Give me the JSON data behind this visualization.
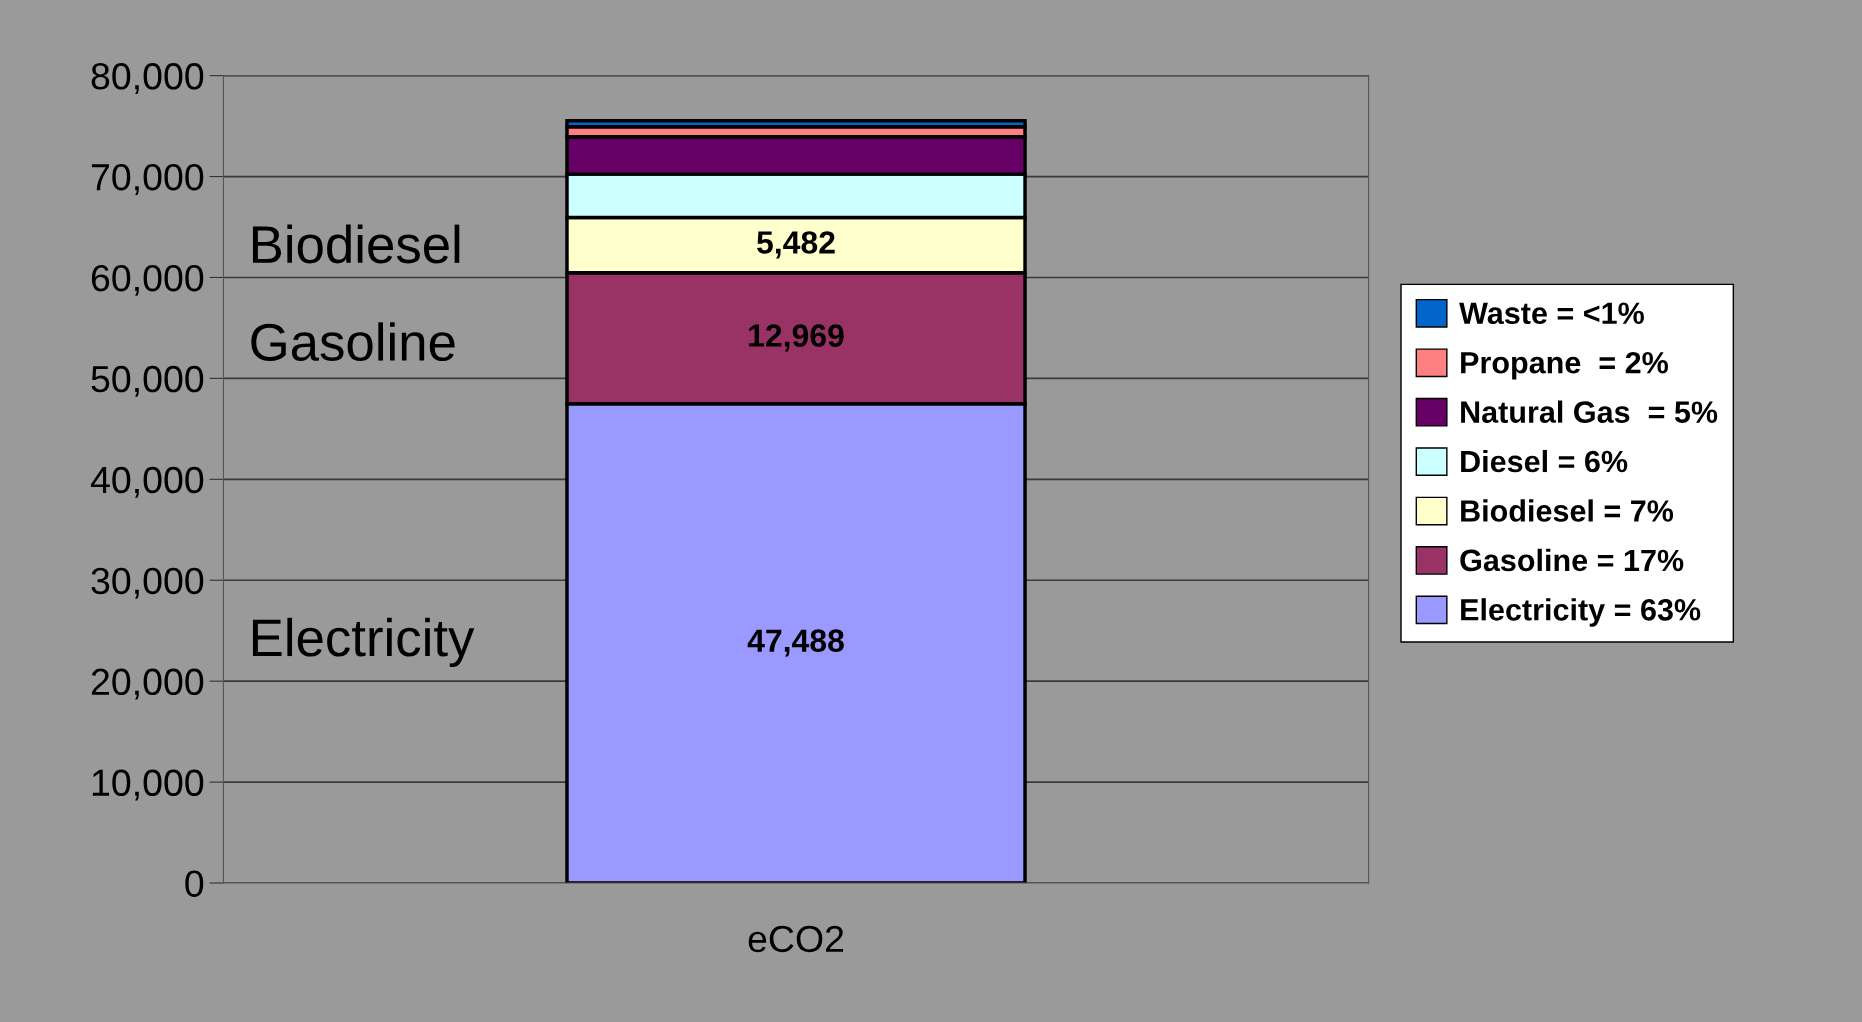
{
  "chart_data": {
    "type": "bar",
    "stacked": true,
    "categories": [
      "eCO2"
    ],
    "series": [
      {
        "name": "Electricity = 63%",
        "color": "#9999ff",
        "values": [
          47488
        ],
        "value_labels": [
          "47,488"
        ]
      },
      {
        "name": "Gasoline = 17%",
        "color": "#993366",
        "values": [
          12969
        ],
        "value_labels": [
          "12,969"
        ]
      },
      {
        "name": "Biodiesel = 7%",
        "color": "#ffffcc",
        "values": [
          5482
        ],
        "value_labels": [
          "5,482"
        ]
      },
      {
        "name": "Diesel = 6%",
        "color": "#ccffff",
        "values": [
          4300
        ],
        "value_labels": [
          null
        ]
      },
      {
        "name": "Natural Gas  = 5%",
        "color": "#660066",
        "values": [
          3700
        ],
        "value_labels": [
          null
        ]
      },
      {
        "name": "Propane  = 2%",
        "color": "#ff8080",
        "values": [
          1000
        ],
        "value_labels": [
          null
        ]
      },
      {
        "name": "Waste = <1%",
        "color": "#0066cc",
        "values": [
          600
        ],
        "value_labels": [
          null
        ]
      }
    ],
    "ylim": [
      0,
      80000
    ],
    "yticks": [
      {
        "value": 0,
        "label": "0"
      },
      {
        "value": 10000,
        "label": "10,000"
      },
      {
        "value": 20000,
        "label": "20,000"
      },
      {
        "value": 30000,
        "label": "30,000"
      },
      {
        "value": 40000,
        "label": "40,000"
      },
      {
        "value": 50000,
        "label": "50,000"
      },
      {
        "value": 60000,
        "label": "60,000"
      },
      {
        "value": 70000,
        "label": "70,000"
      },
      {
        "value": 80000,
        "label": "80,000"
      }
    ],
    "grid": "y",
    "legend": "right",
    "annotations": [
      "Biodiesel",
      "Gasoline",
      "Electricity"
    ]
  }
}
